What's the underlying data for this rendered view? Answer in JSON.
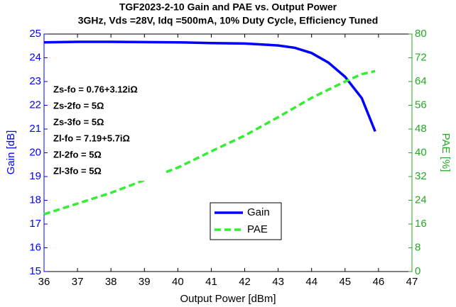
{
  "chart_data": {
    "type": "line",
    "title": "TGF2023-2-10 Gain and PAE vs. Output Power",
    "subtitle": "3GHz, Vds =28V, Idq =500mA, 10% Duty Cycle, Efficiency Tuned",
    "xlabel": "Output Power [dBm]",
    "ylabel": "Gain [dB]",
    "y2label": "PAE [%]",
    "xlim": [
      36,
      47
    ],
    "xticks": [
      36,
      37,
      38,
      39,
      40,
      41,
      42,
      43,
      44,
      45,
      46,
      47
    ],
    "ylim": [
      15,
      25
    ],
    "yticks": [
      15,
      16,
      17,
      18,
      19,
      20,
      21,
      22,
      23,
      24,
      25
    ],
    "y2lim": [
      0,
      80
    ],
    "y2ticks": [
      0,
      8,
      16,
      24,
      32,
      40,
      48,
      56,
      64,
      72,
      80
    ],
    "grid": false,
    "legend": "lower center",
    "annotations": [
      "Zs-fo = 0.76+3.12iΩ",
      "Zs-2fo = 5Ω",
      "Zs-3fo = 5Ω",
      "Zl-fo = 7.19+5.7iΩ",
      "Zl-2fo = 5Ω",
      "Zl-3fo = 5Ω"
    ],
    "series": [
      {
        "name": "Gain",
        "color": "#0000ff",
        "dash": false,
        "x": [
          36,
          37,
          38,
          39,
          40,
          41,
          42,
          43,
          43.5,
          44,
          44.5,
          45,
          45.5,
          45.9
        ],
        "values": [
          24.65,
          24.67,
          24.67,
          24.66,
          24.65,
          24.62,
          24.6,
          24.52,
          24.42,
          24.2,
          23.8,
          23.2,
          22.3,
          20.9
        ]
      },
      {
        "name": "PAE",
        "color": "#33ee33",
        "dash": true,
        "axis": "y2",
        "x": [
          36,
          37,
          38,
          39,
          40,
          41,
          42,
          43,
          44,
          45,
          45.5,
          45.9
        ],
        "values": [
          19.3,
          22.9,
          26.5,
          30.8,
          35,
          40.5,
          45.8,
          52,
          58.5,
          64,
          66.5,
          67.5
        ]
      }
    ]
  }
}
